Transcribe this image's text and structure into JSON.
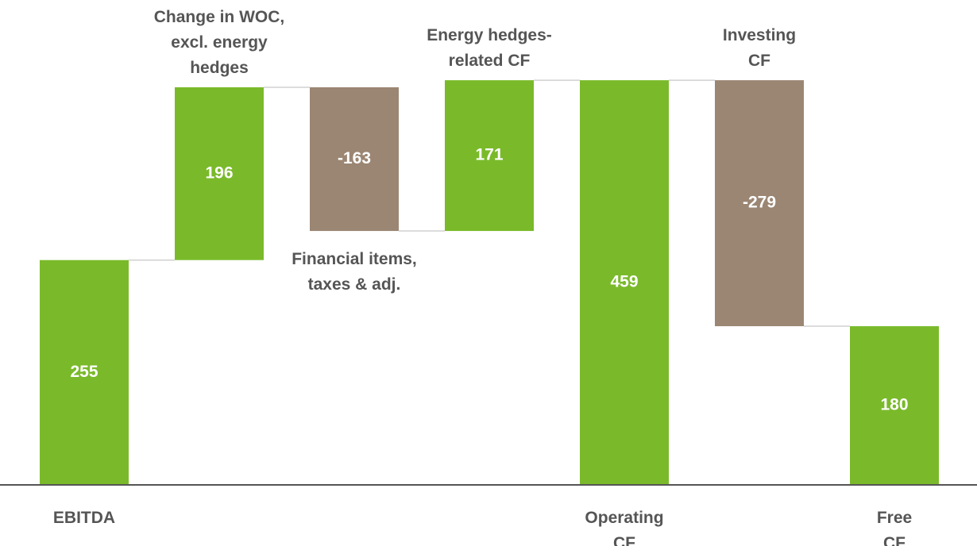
{
  "chart_data": {
    "type": "waterfall",
    "categories": [
      "EBITDA",
      "Change in WOC,\nexcl. energy\nhedges",
      "Financial items,\ntaxes & adj.",
      "Energy hedges-\nrelated CF",
      "Operating\nCF",
      "Investing\nCF",
      "Free\nCF"
    ],
    "values": [
      255,
      196,
      -163,
      171,
      459,
      -279,
      180
    ],
    "measure": [
      "total",
      "relative",
      "relative",
      "relative",
      "total",
      "relative",
      "total"
    ],
    "colors": {
      "positive": "#7aba2a",
      "negative": "#9b8673",
      "total": "#7aba2a"
    },
    "ylim": [
      0,
      550
    ]
  }
}
